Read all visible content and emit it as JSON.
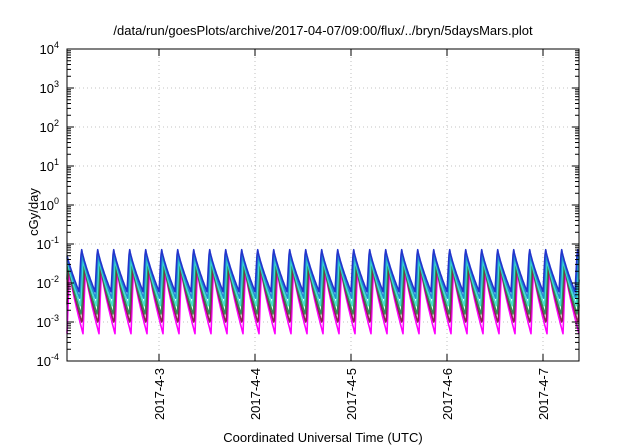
{
  "chart_data": {
    "type": "line",
    "title": "/data/run/goesPlots/archive/2017-04-07/09:00/flux/../bryn/5daysMars.plot",
    "xlabel": "Coordinated Universal Time (UTC)",
    "ylabel": "cGy/day",
    "yscale": "log",
    "ylim": [
      0.0001,
      10000
    ],
    "xlim": [
      "2017-04-02 01:00",
      "2017-04-07 09:00"
    ],
    "grid": true,
    "y_ticks": [
      {
        "base": "10",
        "exp": "-4"
      },
      {
        "base": "10",
        "exp": "-3"
      },
      {
        "base": "10",
        "exp": "-2"
      },
      {
        "base": "10",
        "exp": "-1"
      },
      {
        "base": "10",
        "exp": "0"
      },
      {
        "base": "10",
        "exp": "1"
      },
      {
        "base": "10",
        "exp": "2"
      },
      {
        "base": "10",
        "exp": "3"
      },
      {
        "base": "10",
        "exp": "4"
      }
    ],
    "x_ticks": [
      {
        "label": "2017-4-3",
        "at": "2017-04-03 00:00"
      },
      {
        "label": "2017-4-4",
        "at": "2017-04-04 00:00"
      },
      {
        "label": "2017-4-5",
        "at": "2017-04-05 00:00"
      },
      {
        "label": "2017-4-6",
        "at": "2017-04-06 00:00"
      },
      {
        "label": "2017-4-7",
        "at": "2017-04-07 00:00"
      }
    ],
    "cycles_per_day": 6,
    "series": [
      {
        "color": "#ff00ff",
        "peak": 0.022,
        "trough": 0.0005
      },
      {
        "color": "#8b2252",
        "peak": 0.028,
        "trough": 0.0009
      },
      {
        "color": "#2e8b57",
        "peak": 0.035,
        "trough": 0.0015
      },
      {
        "color": "#40e0d0",
        "peak": 0.045,
        "trough": 0.0025
      },
      {
        "color": "#1f8fd0",
        "peak": 0.06,
        "trough": 0.004
      },
      {
        "color": "#2233cc",
        "peak": 0.08,
        "trough": 0.006
      }
    ]
  }
}
